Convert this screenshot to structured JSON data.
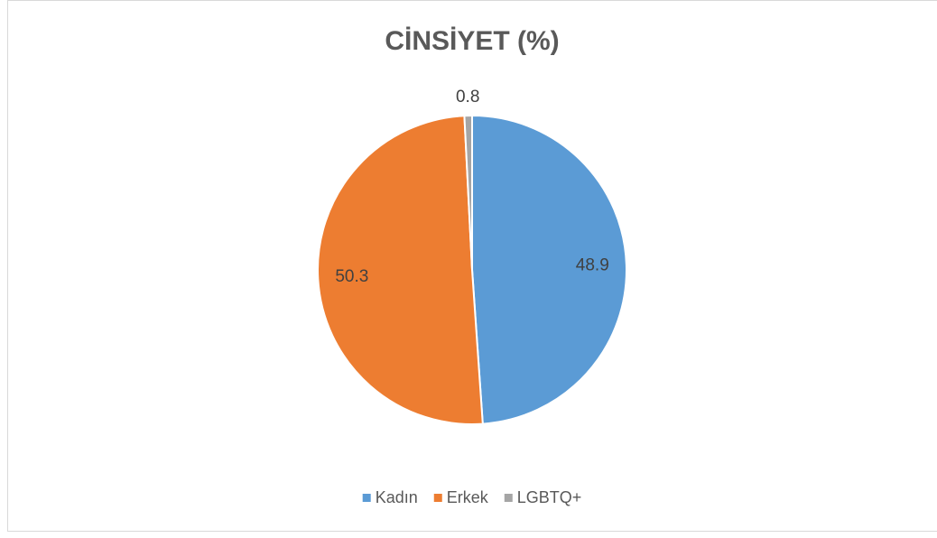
{
  "chart_data": {
    "type": "pie",
    "title": "CİNSİYET (%)",
    "categories": [
      "Kadın",
      "Erkek",
      "LGBTQ+"
    ],
    "values": [
      48.9,
      50.3,
      0.8
    ],
    "colors": [
      "#5b9bd5",
      "#ed7d31",
      "#a5a5a5"
    ],
    "legend": "bottom"
  }
}
